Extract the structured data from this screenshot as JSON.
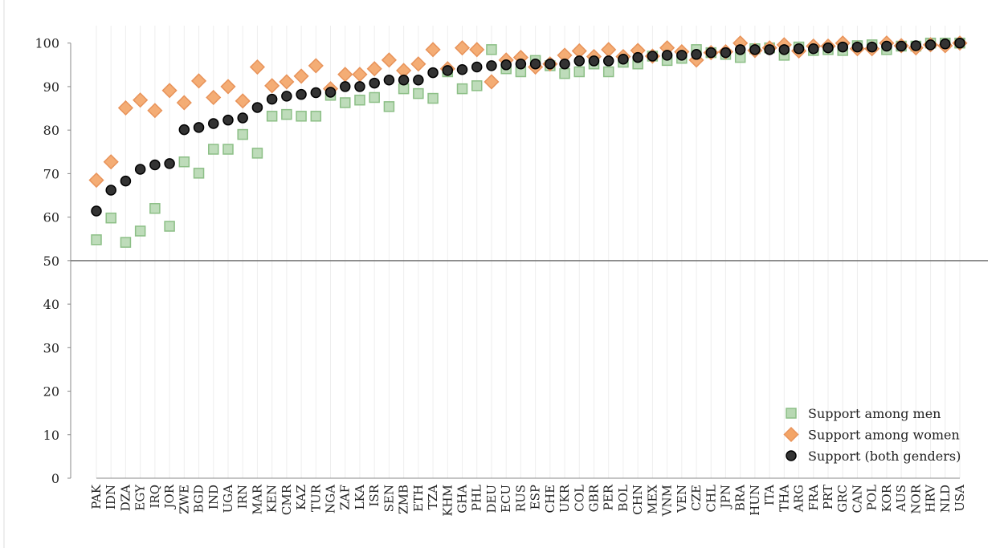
{
  "chart_data": {
    "type": "scatter",
    "categories": [
      "PAK",
      "IDN",
      "DZA",
      "EGY",
      "IRQ",
      "JOR",
      "ZWE",
      "BGD",
      "IND",
      "UGA",
      "IRN",
      "MAR",
      "KEN",
      "CMR",
      "KAZ",
      "TUR",
      "NGA",
      "ZAF",
      "LKA",
      "ISR",
      "SEN",
      "ZMB",
      "ETH",
      "TZA",
      "KHM",
      "GHA",
      "PHL",
      "DEU",
      "ECU",
      "RUS",
      "ESP",
      "CHE",
      "UKR",
      "COL",
      "GBR",
      "PER",
      "BOL",
      "CHN",
      "MEX",
      "VNM",
      "VEN",
      "CZE",
      "CHL",
      "JPN",
      "BRA",
      "HUN",
      "ITA",
      "THA",
      "ARG",
      "FRA",
      "PRT",
      "GRC",
      "CAN",
      "POL",
      "KOR",
      "AUS",
      "NOR",
      "HRV",
      "NLD",
      "USA"
    ],
    "series": [
      {
        "name": "Support among men",
        "color": "#b7d8b2",
        "marker": "square",
        "values": [
          54.8,
          59.8,
          54.2,
          56.8,
          62,
          57.9,
          72.7,
          70.1,
          75.6,
          75.6,
          79,
          74.7,
          83.2,
          83.6,
          83.2,
          83.2,
          88,
          86.3,
          86.9,
          87.5,
          85.4,
          89.5,
          88.4,
          87.3,
          93.4,
          89.5,
          90.2,
          98.5,
          94.1,
          93.4,
          96,
          94.8,
          93,
          93.4,
          95.2,
          93.4,
          95.6,
          95.2,
          97,
          96,
          96.5,
          98.5,
          97.8,
          97.4,
          96.7,
          98.7,
          98.9,
          97.2,
          99.1,
          98.3,
          98.5,
          98.3,
          99.4,
          99.6,
          98.5,
          99.3,
          99.3,
          100,
          100,
          100
        ]
      },
      {
        "name": "Support among women",
        "color": "#f3a466",
        "marker": "diamond",
        "values": [
          68.5,
          72.7,
          85.1,
          86.9,
          84.5,
          89.1,
          86.3,
          91.3,
          87.5,
          90,
          86.7,
          94.5,
          90.2,
          91.1,
          92.4,
          94.8,
          89.5,
          92.8,
          92.8,
          94.1,
          96.1,
          93.7,
          95.2,
          98.5,
          94.1,
          98.9,
          98.5,
          91.1,
          96.1,
          96.7,
          94.5,
          95.2,
          97.2,
          98.2,
          96.9,
          98.5,
          96.9,
          98.3,
          97,
          98.9,
          98,
          96.1,
          97.8,
          98,
          100,
          98.3,
          98.9,
          99.6,
          98.2,
          99.3,
          99.3,
          100,
          98.7,
          98.7,
          100,
          99.4,
          98.9,
          99.6,
          99.4,
          100
        ]
      },
      {
        "name": "Support (both genders)",
        "color": "#333333",
        "marker": "circle",
        "values": [
          61.4,
          66.2,
          68.3,
          71,
          72,
          72.3,
          80.1,
          80.6,
          81.5,
          82.3,
          82.8,
          85.2,
          87.1,
          87.8,
          88.2,
          88.6,
          88.7,
          90,
          90,
          90.8,
          91.5,
          91.5,
          91.5,
          93.2,
          93.7,
          93.9,
          94.5,
          94.8,
          95,
          95.2,
          95.2,
          95.2,
          95.2,
          95.9,
          95.9,
          95.9,
          96.3,
          96.7,
          97,
          97.2,
          97.2,
          97.4,
          97.8,
          97.8,
          98.5,
          98.5,
          98.5,
          98.5,
          98.7,
          98.7,
          98.9,
          99.1,
          99.1,
          99.1,
          99.3,
          99.3,
          99.4,
          99.6,
          99.8,
          100
        ]
      }
    ],
    "ylim": [
      0,
      104
    ],
    "yticks": [
      0,
      10,
      20,
      30,
      40,
      50,
      60,
      70,
      80,
      90,
      100
    ],
    "reference_line": 50,
    "legend": "lower right"
  }
}
